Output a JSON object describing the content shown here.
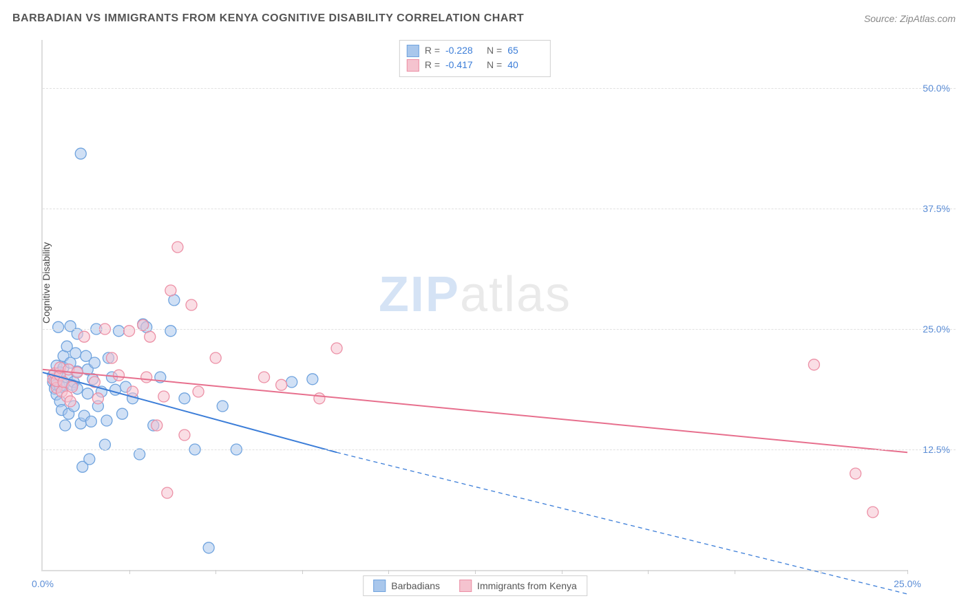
{
  "header": {
    "title": "BARBADIAN VS IMMIGRANTS FROM KENYA COGNITIVE DISABILITY CORRELATION CHART",
    "source_prefix": "Source: ",
    "source_name": "ZipAtlas.com"
  },
  "chart": {
    "type": "scatter",
    "ylabel": "Cognitive Disability",
    "watermark_zip": "ZIP",
    "watermark_atlas": "atlas",
    "background_color": "#ffffff",
    "grid_color": "#e0e0e0",
    "axis_color": "#dddddd",
    "tick_label_color": "#5b8dd6",
    "xlim": [
      0,
      25
    ],
    "ylim": [
      0,
      55
    ],
    "y_ticks": [
      {
        "v": 12.5,
        "label": "12.5%"
      },
      {
        "v": 25.0,
        "label": "25.0%"
      },
      {
        "v": 37.5,
        "label": "37.5%"
      },
      {
        "v": 50.0,
        "label": "50.0%"
      }
    ],
    "x_tick_positions": [
      2.5,
      5,
      7.5,
      10,
      12.5,
      15,
      17.5,
      20,
      22.5,
      25
    ],
    "x_tick_labels": [
      {
        "v": 0,
        "label": "0.0%"
      },
      {
        "v": 25,
        "label": "25.0%"
      }
    ],
    "marker_radius": 8,
    "marker_opacity": 0.55,
    "line_width": 2,
    "series": [
      {
        "name": "Barbadians",
        "color_fill": "#a9c7ec",
        "color_stroke": "#6fa3de",
        "line_color": "#3b7dd8",
        "stats": {
          "R": "-0.228",
          "N": "65"
        },
        "trend": {
          "x1": 0,
          "y1": 20.5,
          "x2": 8.5,
          "y2": 12.2,
          "x2_ext": 25,
          "y2_ext": -2.5,
          "dash_from_x": 8.5
        },
        "points": [
          [
            0.3,
            19.5
          ],
          [
            0.3,
            20.2
          ],
          [
            0.35,
            18.8
          ],
          [
            0.35,
            19.6
          ],
          [
            0.4,
            21.2
          ],
          [
            0.4,
            19.2
          ],
          [
            0.4,
            18.2
          ],
          [
            0.45,
            25.2
          ],
          [
            0.5,
            20.5
          ],
          [
            0.5,
            19.0
          ],
          [
            0.5,
            17.5
          ],
          [
            0.55,
            16.6
          ],
          [
            0.6,
            21.0
          ],
          [
            0.6,
            22.2
          ],
          [
            0.6,
            19.2
          ],
          [
            0.65,
            15.0
          ],
          [
            0.7,
            23.2
          ],
          [
            0.7,
            20.0
          ],
          [
            0.75,
            16.2
          ],
          [
            0.8,
            21.5
          ],
          [
            0.8,
            25.3
          ],
          [
            0.85,
            19.2
          ],
          [
            0.9,
            17.0
          ],
          [
            0.9,
            19.5
          ],
          [
            0.95,
            22.5
          ],
          [
            1.0,
            24.5
          ],
          [
            1.0,
            20.6
          ],
          [
            1.0,
            18.8
          ],
          [
            1.1,
            43.2
          ],
          [
            1.1,
            15.2
          ],
          [
            1.15,
            10.7
          ],
          [
            1.2,
            16.0
          ],
          [
            1.25,
            22.2
          ],
          [
            1.3,
            18.3
          ],
          [
            1.3,
            20.8
          ],
          [
            1.35,
            11.5
          ],
          [
            1.4,
            15.4
          ],
          [
            1.45,
            19.8
          ],
          [
            1.5,
            21.5
          ],
          [
            1.55,
            25.0
          ],
          [
            1.6,
            17.0
          ],
          [
            1.7,
            18.5
          ],
          [
            1.8,
            13.0
          ],
          [
            1.85,
            15.5
          ],
          [
            1.9,
            22.0
          ],
          [
            2.0,
            20.0
          ],
          [
            2.1,
            18.7
          ],
          [
            2.2,
            24.8
          ],
          [
            2.3,
            16.2
          ],
          [
            2.4,
            19.0
          ],
          [
            2.6,
            17.8
          ],
          [
            2.8,
            12.0
          ],
          [
            2.9,
            25.5
          ],
          [
            3.0,
            25.2
          ],
          [
            3.2,
            15.0
          ],
          [
            3.4,
            20.0
          ],
          [
            3.7,
            24.8
          ],
          [
            4.1,
            17.8
          ],
          [
            4.4,
            12.5
          ],
          [
            4.8,
            2.3
          ],
          [
            5.2,
            17.0
          ],
          [
            5.6,
            12.5
          ],
          [
            7.2,
            19.5
          ],
          [
            7.8,
            19.8
          ],
          [
            3.8,
            28.0
          ]
        ]
      },
      {
        "name": "Immigrants from Kenya",
        "color_fill": "#f5c3cf",
        "color_stroke": "#ec8fa5",
        "line_color": "#e76f8d",
        "stats": {
          "R": "-0.417",
          "N": "40"
        },
        "trend": {
          "x1": 0,
          "y1": 20.8,
          "x2": 25,
          "y2": 12.2
        },
        "points": [
          [
            0.3,
            19.8
          ],
          [
            0.35,
            20.4
          ],
          [
            0.4,
            18.9
          ],
          [
            0.4,
            19.6
          ],
          [
            0.5,
            20.2
          ],
          [
            0.5,
            21.0
          ],
          [
            0.55,
            18.5
          ],
          [
            0.6,
            19.5
          ],
          [
            0.7,
            18.0
          ],
          [
            0.75,
            20.8
          ],
          [
            0.8,
            17.5
          ],
          [
            0.85,
            19.0
          ],
          [
            1.0,
            20.5
          ],
          [
            1.2,
            24.2
          ],
          [
            1.5,
            19.5
          ],
          [
            1.6,
            17.8
          ],
          [
            1.8,
            25.0
          ],
          [
            2.0,
            22.0
          ],
          [
            2.2,
            20.2
          ],
          [
            2.5,
            24.8
          ],
          [
            2.6,
            18.5
          ],
          [
            2.9,
            25.4
          ],
          [
            3.0,
            20.0
          ],
          [
            3.1,
            24.2
          ],
          [
            3.3,
            15.0
          ],
          [
            3.5,
            18.0
          ],
          [
            3.6,
            8.0
          ],
          [
            3.7,
            29.0
          ],
          [
            3.9,
            33.5
          ],
          [
            4.1,
            14.0
          ],
          [
            4.3,
            27.5
          ],
          [
            4.5,
            18.5
          ],
          [
            5.0,
            22.0
          ],
          [
            6.4,
            20.0
          ],
          [
            6.9,
            19.2
          ],
          [
            8.0,
            17.8
          ],
          [
            8.5,
            23.0
          ],
          [
            22.3,
            21.3
          ],
          [
            23.5,
            10.0
          ],
          [
            24.0,
            6.0
          ]
        ]
      }
    ],
    "stats_box": {
      "r_label": "R =",
      "n_label": "N ="
    },
    "bottom_legend_labels": [
      "Barbadians",
      "Immigrants from Kenya"
    ]
  }
}
